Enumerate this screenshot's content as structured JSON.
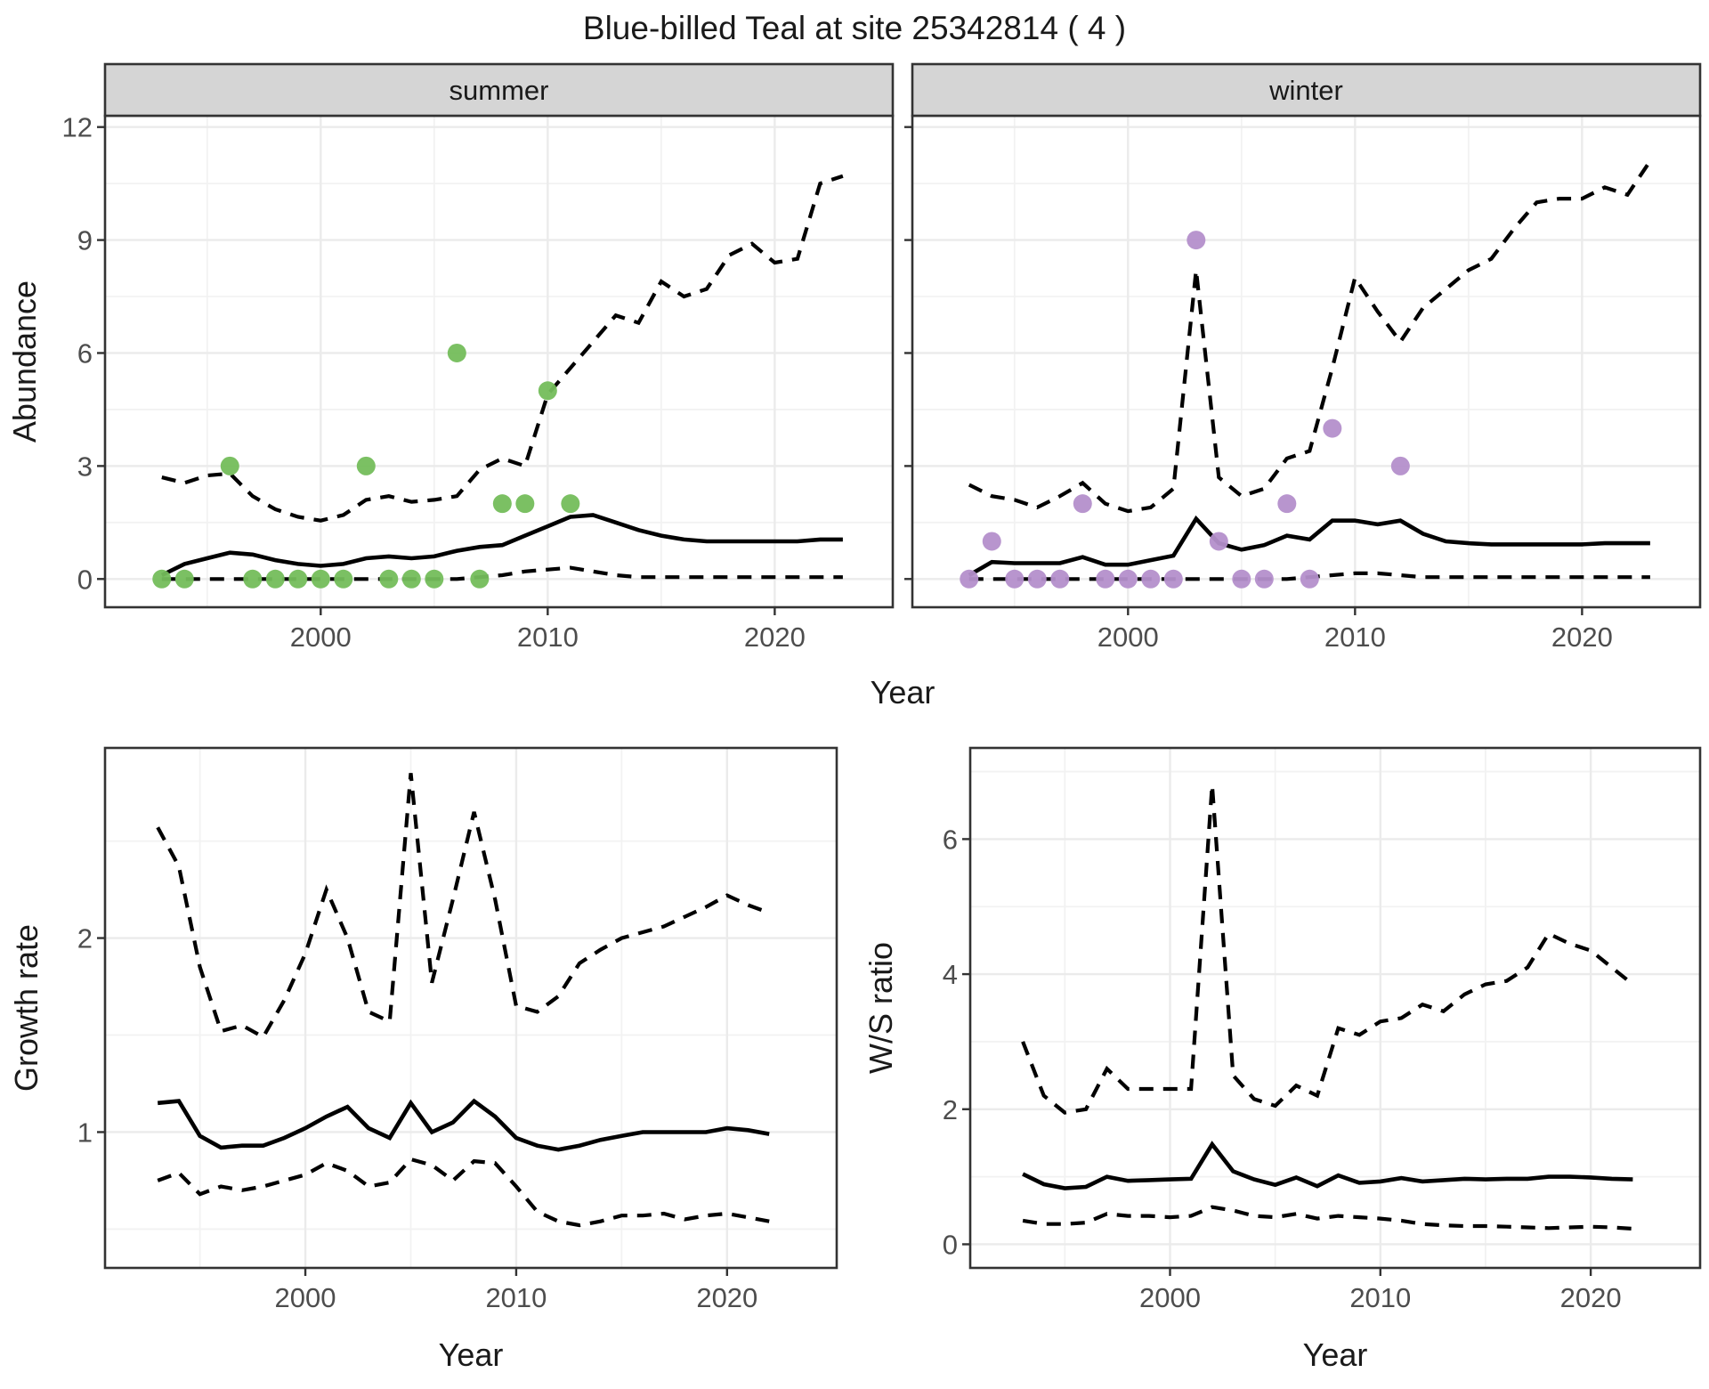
{
  "title": "Blue-billed Teal at site 25342814 ( 4 )",
  "labels": {
    "abundance": "Abundance",
    "growth_rate": "Growth rate",
    "ws_ratio": "W/S ratio",
    "year": "Year"
  },
  "colors": {
    "background": "#ffffff",
    "line": "#000000",
    "summer_dot": "#74bd5b",
    "winter_dot": "#b48fcb",
    "strip_bg": "#d5d5d5",
    "panel_border": "#333333",
    "grid_major": "#ebebeb",
    "grid_minor": "#f2f2f2",
    "tick_mark": "#333333",
    "tick_text": "#4d4d4d",
    "title_text": "#1a1a1a"
  },
  "chart_data": [
    {
      "id": "abundance-summer",
      "type": "line",
      "facet_label": "summer",
      "xlabel": "Year",
      "ylabel": "Abundance",
      "xlim": [
        1990.5,
        2025.2
      ],
      "ylim": [
        -0.75,
        12.3
      ],
      "x_major": [
        2000,
        2010,
        2020
      ],
      "x_minor": [
        1995,
        2005,
        2015
      ],
      "y_major": [
        0,
        3,
        6,
        9,
        12
      ],
      "y_minor": [
        1.5,
        4.5,
        7.5,
        10.5
      ],
      "show_y_tick_labels": true,
      "show_x_tick_labels": true,
      "years": [
        1993,
        1994,
        1995,
        1996,
        1997,
        1998,
        1999,
        2000,
        2001,
        2002,
        2003,
        2004,
        2005,
        2006,
        2007,
        2008,
        2009,
        2010,
        2011,
        2012,
        2013,
        2014,
        2015,
        2016,
        2017,
        2018,
        2019,
        2020,
        2021,
        2022,
        2023
      ],
      "series": [
        {
          "name": "median",
          "style": "solid",
          "values": [
            0.1,
            0.4,
            0.55,
            0.7,
            0.65,
            0.5,
            0.4,
            0.35,
            0.4,
            0.55,
            0.6,
            0.55,
            0.6,
            0.75,
            0.85,
            0.9,
            1.15,
            1.4,
            1.65,
            1.7,
            1.5,
            1.3,
            1.15,
            1.05,
            1.0,
            1.0,
            1.0,
            1.0,
            1.0,
            1.05,
            1.05
          ]
        },
        {
          "name": "upper_ci",
          "style": "dashed",
          "values": [
            2.7,
            2.55,
            2.75,
            2.8,
            2.2,
            1.85,
            1.65,
            1.55,
            1.7,
            2.1,
            2.2,
            2.05,
            2.1,
            2.2,
            2.9,
            3.2,
            3.0,
            4.9,
            5.6,
            6.3,
            7.0,
            6.8,
            7.9,
            7.5,
            7.7,
            8.6,
            8.9,
            8.4,
            8.5,
            10.5,
            10.7
          ]
        },
        {
          "name": "lower_ci",
          "style": "dashed",
          "values": [
            0,
            0,
            0,
            0,
            0,
            0,
            0,
            0,
            0,
            0,
            0,
            0,
            0,
            0,
            0.05,
            0.1,
            0.2,
            0.25,
            0.3,
            0.2,
            0.1,
            0.05,
            0.05,
            0.05,
            0.05,
            0.05,
            0.05,
            0.05,
            0.05,
            0.05,
            0.05
          ]
        }
      ],
      "points": {
        "years": [
          1993,
          1994,
          1996,
          1997,
          1998,
          1999,
          2000,
          2001,
          2002,
          2003,
          2004,
          2005,
          2006,
          2007,
          2008,
          2009,
          2010,
          2011
        ],
        "values": [
          0,
          0,
          3,
          0,
          0,
          0,
          0,
          0,
          3,
          0,
          0,
          0,
          6,
          0,
          2,
          2,
          5,
          2
        ],
        "color": "#74bd5b"
      }
    },
    {
      "id": "abundance-winter",
      "type": "line",
      "facet_label": "winter",
      "xlabel": "Year",
      "ylabel": "Abundance",
      "xlim": [
        1990.5,
        2025.2
      ],
      "ylim": [
        -0.75,
        12.3
      ],
      "x_major": [
        2000,
        2010,
        2020
      ],
      "x_minor": [
        1995,
        2005,
        2015
      ],
      "y_major": [
        0,
        3,
        6,
        9,
        12
      ],
      "y_minor": [
        1.5,
        4.5,
        7.5,
        10.5
      ],
      "show_y_tick_labels": false,
      "show_x_tick_labels": true,
      "years": [
        1993,
        1994,
        1995,
        1996,
        1997,
        1998,
        1999,
        2000,
        2001,
        2002,
        2003,
        2004,
        2005,
        2006,
        2007,
        2008,
        2009,
        2010,
        2011,
        2012,
        2013,
        2014,
        2015,
        2016,
        2017,
        2018,
        2019,
        2020,
        2021,
        2022,
        2023
      ],
      "series": [
        {
          "name": "median",
          "style": "solid",
          "values": [
            0.1,
            0.45,
            0.42,
            0.42,
            0.42,
            0.58,
            0.38,
            0.38,
            0.5,
            0.62,
            1.6,
            0.95,
            0.78,
            0.9,
            1.15,
            1.05,
            1.55,
            1.55,
            1.45,
            1.55,
            1.2,
            1.0,
            0.95,
            0.92,
            0.92,
            0.92,
            0.92,
            0.92,
            0.95,
            0.95,
            0.95
          ]
        },
        {
          "name": "upper_ci",
          "style": "dashed",
          "values": [
            2.5,
            2.2,
            2.1,
            1.9,
            2.2,
            2.55,
            2.0,
            1.8,
            1.9,
            2.4,
            8.2,
            2.7,
            2.2,
            2.4,
            3.2,
            3.4,
            5.6,
            8.0,
            7.1,
            6.3,
            7.2,
            7.7,
            8.2,
            8.5,
            9.3,
            10.0,
            10.1,
            10.1,
            10.4,
            10.2,
            11.1
          ]
        },
        {
          "name": "lower_ci",
          "style": "dashed",
          "values": [
            0,
            0,
            0,
            0,
            0,
            0,
            0,
            0,
            0,
            0,
            0,
            0,
            0,
            0,
            0,
            0.05,
            0.1,
            0.15,
            0.15,
            0.1,
            0.05,
            0.05,
            0.05,
            0.05,
            0.05,
            0.05,
            0.05,
            0.05,
            0.05,
            0.05,
            0.05
          ]
        }
      ],
      "points": {
        "years": [
          1993,
          1994,
          1995,
          1996,
          1997,
          1998,
          1999,
          2000,
          2001,
          2002,
          2003,
          2004,
          2005,
          2006,
          2007,
          2008,
          2009,
          2012
        ],
        "values": [
          0,
          1,
          0,
          0,
          0,
          2,
          0,
          0,
          0,
          0,
          9,
          1,
          0,
          0,
          2,
          0,
          4,
          3
        ],
        "color": "#b48fcb"
      }
    },
    {
      "id": "growth-rate",
      "type": "line",
      "facet_label": null,
      "xlabel": "Year",
      "ylabel": "Growth rate",
      "xlim": [
        1990.5,
        2025.2
      ],
      "ylim": [
        0.3,
        2.98
      ],
      "x_major": [
        2000,
        2010,
        2020
      ],
      "x_minor": [
        1995,
        2005,
        2015
      ],
      "y_major": [
        1,
        2
      ],
      "y_minor": [
        0.5,
        1.5,
        2.5
      ],
      "show_y_tick_labels": true,
      "show_x_tick_labels": true,
      "years": [
        1993,
        1994,
        1995,
        1996,
        1997,
        1998,
        1999,
        2000,
        2001,
        2002,
        2003,
        2004,
        2005,
        2006,
        2007,
        2008,
        2009,
        2010,
        2011,
        2012,
        2013,
        2014,
        2015,
        2016,
        2017,
        2018,
        2019,
        2020,
        2021,
        2022
      ],
      "series": [
        {
          "name": "median",
          "style": "solid",
          "values": [
            1.15,
            1.16,
            0.98,
            0.92,
            0.93,
            0.93,
            0.97,
            1.02,
            1.08,
            1.13,
            1.02,
            0.97,
            1.15,
            1.0,
            1.05,
            1.16,
            1.08,
            0.97,
            0.93,
            0.91,
            0.93,
            0.96,
            0.98,
            1.0,
            1.0,
            1.0,
            1.0,
            1.02,
            1.01,
            0.99
          ]
        },
        {
          "name": "upper_ci",
          "style": "dashed",
          "values": [
            2.57,
            2.37,
            1.85,
            1.52,
            1.55,
            1.49,
            1.68,
            1.92,
            2.25,
            2.0,
            1.62,
            1.57,
            2.85,
            1.77,
            2.2,
            2.65,
            2.2,
            1.65,
            1.62,
            1.7,
            1.87,
            1.94,
            2.0,
            2.03,
            2.06,
            2.11,
            2.16,
            2.22,
            2.17,
            2.13
          ]
        },
        {
          "name": "lower_ci",
          "style": "dashed",
          "values": [
            0.75,
            0.79,
            0.68,
            0.72,
            0.7,
            0.72,
            0.75,
            0.78,
            0.84,
            0.8,
            0.72,
            0.74,
            0.86,
            0.83,
            0.75,
            0.85,
            0.84,
            0.72,
            0.59,
            0.54,
            0.52,
            0.54,
            0.57,
            0.57,
            0.58,
            0.55,
            0.57,
            0.58,
            0.56,
            0.54
          ]
        }
      ],
      "points": null
    },
    {
      "id": "ws-ratio",
      "type": "line",
      "facet_label": null,
      "xlabel": "Year",
      "ylabel": "W/S ratio",
      "xlim": [
        1990.5,
        2025.2
      ],
      "ylim": [
        -0.35,
        7.35
      ],
      "x_major": [
        2000,
        2010,
        2020
      ],
      "x_minor": [
        1995,
        2005,
        2015
      ],
      "y_major": [
        0,
        2,
        4,
        6
      ],
      "y_minor": [
        1,
        3,
        5,
        7
      ],
      "show_y_tick_labels": true,
      "show_x_tick_labels": true,
      "years": [
        1993,
        1994,
        1995,
        1996,
        1997,
        1998,
        1999,
        2000,
        2001,
        2002,
        2003,
        2004,
        2005,
        2006,
        2007,
        2008,
        2009,
        2010,
        2011,
        2012,
        2013,
        2014,
        2015,
        2016,
        2017,
        2018,
        2019,
        2020,
        2021,
        2022
      ],
      "series": [
        {
          "name": "median",
          "style": "solid",
          "values": [
            1.04,
            0.89,
            0.83,
            0.85,
            1.0,
            0.94,
            0.95,
            0.96,
            0.97,
            1.48,
            1.08,
            0.96,
            0.88,
            0.99,
            0.86,
            1.02,
            0.91,
            0.93,
            0.98,
            0.93,
            0.95,
            0.97,
            0.96,
            0.97,
            0.97,
            1.0,
            1.0,
            0.99,
            0.97,
            0.96
          ]
        },
        {
          "name": "upper_ci",
          "style": "dashed",
          "values": [
            3.0,
            2.2,
            1.95,
            2.0,
            2.6,
            2.3,
            2.3,
            2.3,
            2.3,
            6.8,
            2.5,
            2.15,
            2.05,
            2.35,
            2.2,
            3.2,
            3.1,
            3.3,
            3.35,
            3.55,
            3.45,
            3.7,
            3.85,
            3.9,
            4.1,
            4.6,
            4.45,
            4.35,
            4.1,
            3.85
          ]
        },
        {
          "name": "lower_ci",
          "style": "dashed",
          "values": [
            0.35,
            0.3,
            0.3,
            0.32,
            0.45,
            0.42,
            0.42,
            0.4,
            0.42,
            0.55,
            0.5,
            0.42,
            0.4,
            0.45,
            0.38,
            0.42,
            0.4,
            0.38,
            0.35,
            0.3,
            0.28,
            0.27,
            0.27,
            0.26,
            0.25,
            0.24,
            0.25,
            0.26,
            0.25,
            0.23
          ]
        }
      ],
      "points": null
    }
  ]
}
